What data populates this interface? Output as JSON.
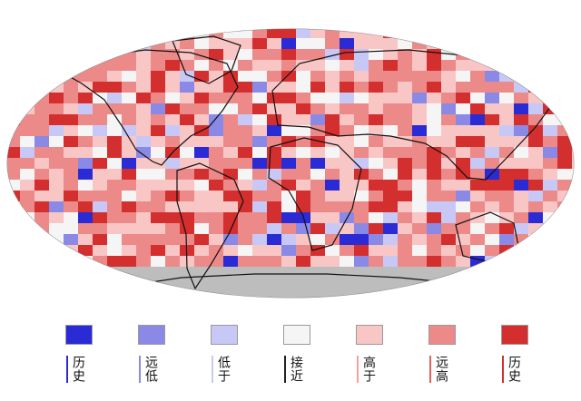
{
  "colors": {
    "record_low": "#2b2bd6",
    "much_below": "#8a8ae6",
    "below": "#c8c8f6",
    "near": "#f5f5f5",
    "above": "#f9c6c6",
    "much_above": "#ec8a8a",
    "record_high": "#d42f2f",
    "no_data": "#bdbdbd",
    "ocean_frame": "#bdbdbd",
    "coast": "#111111"
  },
  "legend": [
    {
      "key": "record_low",
      "label": "历史",
      "tick": "#2b2bd6"
    },
    {
      "key": "much_below",
      "label": "远低",
      "tick": "#8a8ae6"
    },
    {
      "key": "below",
      "label": "低于",
      "tick": "#c8c8f6"
    },
    {
      "key": "near",
      "label": "接近",
      "tick": "#222222"
    },
    {
      "key": "above",
      "label": "高于",
      "tick": "#f3a0a0"
    },
    {
      "key": "much_above",
      "label": "远高",
      "tick": "#e06060"
    },
    {
      "key": "record_high",
      "label": "历史",
      "tick": "#d42f2f"
    }
  ]
}
